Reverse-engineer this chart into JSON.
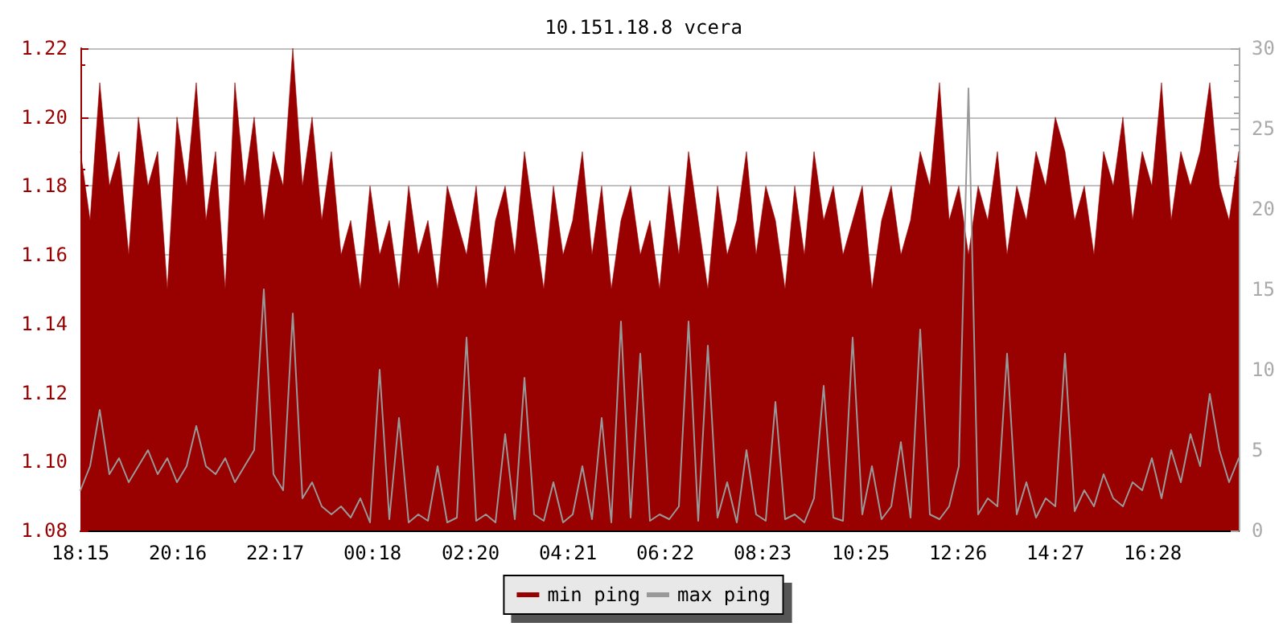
{
  "chart_data": {
    "type": "area",
    "title": "10.151.18.8 vcera",
    "x": [
      "--01-01T18:15",
      "--01-01T18:27",
      "--01-01T18:39",
      "--01-01T18:51",
      "--01-01T19:03",
      "--01-01T19:15",
      "--01-01T19:27",
      "--01-01T19:39",
      "--01-01T19:51",
      "--01-01T20:03",
      "--01-01T20:15",
      "--01-01T20:27",
      "--01-01T20:39",
      "--01-01T20:51",
      "--01-01T21:03",
      "--01-01T21:15",
      "--01-01T21:27",
      "--01-01T21:39",
      "--01-01T21:51",
      "--01-01T22:03",
      "--01-01T22:15",
      "--01-01T22:27",
      "--01-01T22:39",
      "--01-01T22:51",
      "--01-01T23:03",
      "--01-01T23:15",
      "--01-01T23:27",
      "--01-01T23:39",
      "--01-01T23:51",
      "--01-02T00:03",
      "--01-02T00:15",
      "--01-02T00:27",
      "--01-02T00:39",
      "--01-02T00:51",
      "--01-02T01:03",
      "--01-02T01:15",
      "--01-02T01:27",
      "--01-02T01:39",
      "--01-02T01:51",
      "--01-02T02:03",
      "--01-02T02:15",
      "--01-02T02:27",
      "--01-02T02:39",
      "--01-02T02:51",
      "--01-02T03:03",
      "--01-02T03:15",
      "--01-02T03:27",
      "--01-02T03:39",
      "--01-02T03:51",
      "--01-02T04:03",
      "--01-02T04:15",
      "--01-02T04:27",
      "--01-02T04:39",
      "--01-02T04:51",
      "--01-02T05:03",
      "--01-02T05:15",
      "--01-02T05:27",
      "--01-02T05:39",
      "--01-02T05:51",
      "--01-02T06:03",
      "--01-02T06:15",
      "--01-02T06:27",
      "--01-02T06:39",
      "--01-02T06:51",
      "--01-02T07:03",
      "--01-02T07:15",
      "--01-02T07:27",
      "--01-02T07:39",
      "--01-02T07:51",
      "--01-02T08:03",
      "--01-02T08:15",
      "--01-02T08:27",
      "--01-02T08:39",
      "--01-02T08:51",
      "--01-02T09:03",
      "--01-02T09:15",
      "--01-02T09:27",
      "--01-02T09:39",
      "--01-02T09:51",
      "--01-02T10:03",
      "--01-02T10:15",
      "--01-02T10:27",
      "--01-02T10:39",
      "--01-02T10:51",
      "--01-02T11:03",
      "--01-02T11:15",
      "--01-02T11:27",
      "--01-02T11:39",
      "--01-02T11:51",
      "--01-02T12:03",
      "--01-02T12:15",
      "--01-02T12:27",
      "--01-02T12:39",
      "--01-02T12:51",
      "--01-02T13:03",
      "--01-02T13:15",
      "--01-02T13:27",
      "--01-02T13:39",
      "--01-02T13:51",
      "--01-02T14:03",
      "--01-02T14:15",
      "--01-02T14:27",
      "--01-02T14:39",
      "--01-02T14:51",
      "--01-02T15:03",
      "--01-02T15:15",
      "--01-02T15:27",
      "--01-02T15:39",
      "--01-02T15:51",
      "--01-02T16:03",
      "--01-02T16:15",
      "--01-02T16:27",
      "--01-02T16:39",
      "--01-02T16:51",
      "--01-02T17:03",
      "--01-02T17:15",
      "--01-02T17:27",
      "--01-02T17:39",
      "--01-02T17:51",
      "--01-02T18:03",
      "--01-02T18:15"
    ],
    "series": [
      {
        "name": "min ping",
        "color": "#990000",
        "values": [
          1.19,
          1.17,
          1.21,
          1.18,
          1.19,
          1.16,
          1.2,
          1.18,
          1.19,
          1.15,
          1.2,
          1.18,
          1.21,
          1.17,
          1.19,
          1.15,
          1.21,
          1.18,
          1.2,
          1.17,
          1.19,
          1.18,
          1.22,
          1.18,
          1.2,
          1.17,
          1.19,
          1.16,
          1.17,
          1.15,
          1.18,
          1.16,
          1.17,
          1.15,
          1.18,
          1.16,
          1.17,
          1.15,
          1.18,
          1.17,
          1.16,
          1.18,
          1.15,
          1.17,
          1.18,
          1.16,
          1.19,
          1.17,
          1.15,
          1.18,
          1.16,
          1.17,
          1.19,
          1.16,
          1.18,
          1.15,
          1.17,
          1.18,
          1.16,
          1.17,
          1.15,
          1.18,
          1.16,
          1.19,
          1.17,
          1.15,
          1.18,
          1.16,
          1.17,
          1.19,
          1.16,
          1.18,
          1.17,
          1.15,
          1.18,
          1.16,
          1.19,
          1.17,
          1.18,
          1.16,
          1.17,
          1.18,
          1.15,
          1.17,
          1.18,
          1.16,
          1.17,
          1.19,
          1.18,
          1.21,
          1.17,
          1.18,
          1.16,
          1.18,
          1.17,
          1.19,
          1.16,
          1.18,
          1.17,
          1.19,
          1.18,
          1.2,
          1.19,
          1.17,
          1.18,
          1.16,
          1.19,
          1.18,
          1.2,
          1.17,
          1.19,
          1.18,
          1.21,
          1.17,
          1.19,
          1.18,
          1.19,
          1.21,
          1.18,
          1.17,
          1.19
        ]
      },
      {
        "name": "max ping",
        "color": "#999999",
        "type": "line",
        "axis": "y2",
        "values": [
          2.5,
          4,
          7.5,
          3.5,
          4.5,
          3,
          4,
          5,
          3.5,
          4.5,
          3,
          4,
          6.5,
          4,
          3.5,
          4.5,
          3,
          4,
          5,
          15,
          3.5,
          2.5,
          13.5,
          2,
          3,
          1.5,
          1,
          1.5,
          0.8,
          2,
          0.5,
          10,
          0.7,
          7,
          0.5,
          1,
          0.6,
          4,
          0.5,
          0.8,
          12,
          0.6,
          1,
          0.5,
          6,
          0.7,
          9.5,
          1,
          0.6,
          3,
          0.5,
          1,
          4,
          0.7,
          7,
          0.5,
          13,
          0.8,
          11,
          0.6,
          1,
          0.7,
          1.5,
          13,
          0.6,
          11.5,
          0.8,
          3,
          0.5,
          5,
          1,
          0.6,
          8,
          0.7,
          1,
          0.5,
          2,
          9,
          0.8,
          0.6,
          12,
          1,
          4,
          0.7,
          1.5,
          5.5,
          0.8,
          12.5,
          1,
          0.7,
          1.5,
          4,
          27.5,
          1,
          2,
          1.5,
          11,
          1,
          3,
          0.8,
          2,
          1.5,
          11,
          1.2,
          2.5,
          1.5,
          3.5,
          2,
          1.5,
          3,
          2.5,
          4.5,
          2,
          5,
          3,
          6,
          4,
          8.5,
          5,
          3,
          4.5
        ]
      }
    ],
    "xlim": [
      "--01-01T18:15",
      "--01-02T18:15"
    ],
    "xticks": [
      {
        "value": "--01-01T18:15",
        "label": "18:15"
      },
      {
        "value": "--01-01T20:16",
        "label": "20:16"
      },
      {
        "value": "--01-01T22:17",
        "label": "22:17"
      },
      {
        "value": "--01-02T00:18",
        "label": "00:18"
      },
      {
        "value": "--01-02T02:20",
        "label": "02:20"
      },
      {
        "value": "--01-02T04:21",
        "label": "04:21"
      },
      {
        "value": "--01-02T06:22",
        "label": "06:22"
      },
      {
        "value": "--01-02T08:23",
        "label": "08:23"
      },
      {
        "value": "--01-02T10:25",
        "label": "10:25"
      },
      {
        "value": "--01-02T12:26",
        "label": "12:26"
      },
      {
        "value": "--01-02T14:27",
        "label": "14:27"
      },
      {
        "value": "--01-02T16:28",
        "label": "16:28"
      }
    ],
    "ylim": [
      1.08,
      1.22
    ],
    "yticks": [
      {
        "value": 1.08,
        "label": "1.08"
      },
      {
        "value": 1.1,
        "label": "1.10"
      },
      {
        "value": 1.12,
        "label": "1.12"
      },
      {
        "value": 1.14,
        "label": "1.14"
      },
      {
        "value": 1.16,
        "label": "1.16"
      },
      {
        "value": 1.18,
        "label": "1.18"
      },
      {
        "value": 1.2,
        "label": "1.20"
      },
      {
        "value": 1.22,
        "label": "1.22"
      }
    ],
    "y2lim": [
      0,
      30
    ],
    "y2ticks": [
      0,
      5,
      10,
      15,
      20,
      25,
      30
    ],
    "grid": "y",
    "legend": "bottom"
  }
}
